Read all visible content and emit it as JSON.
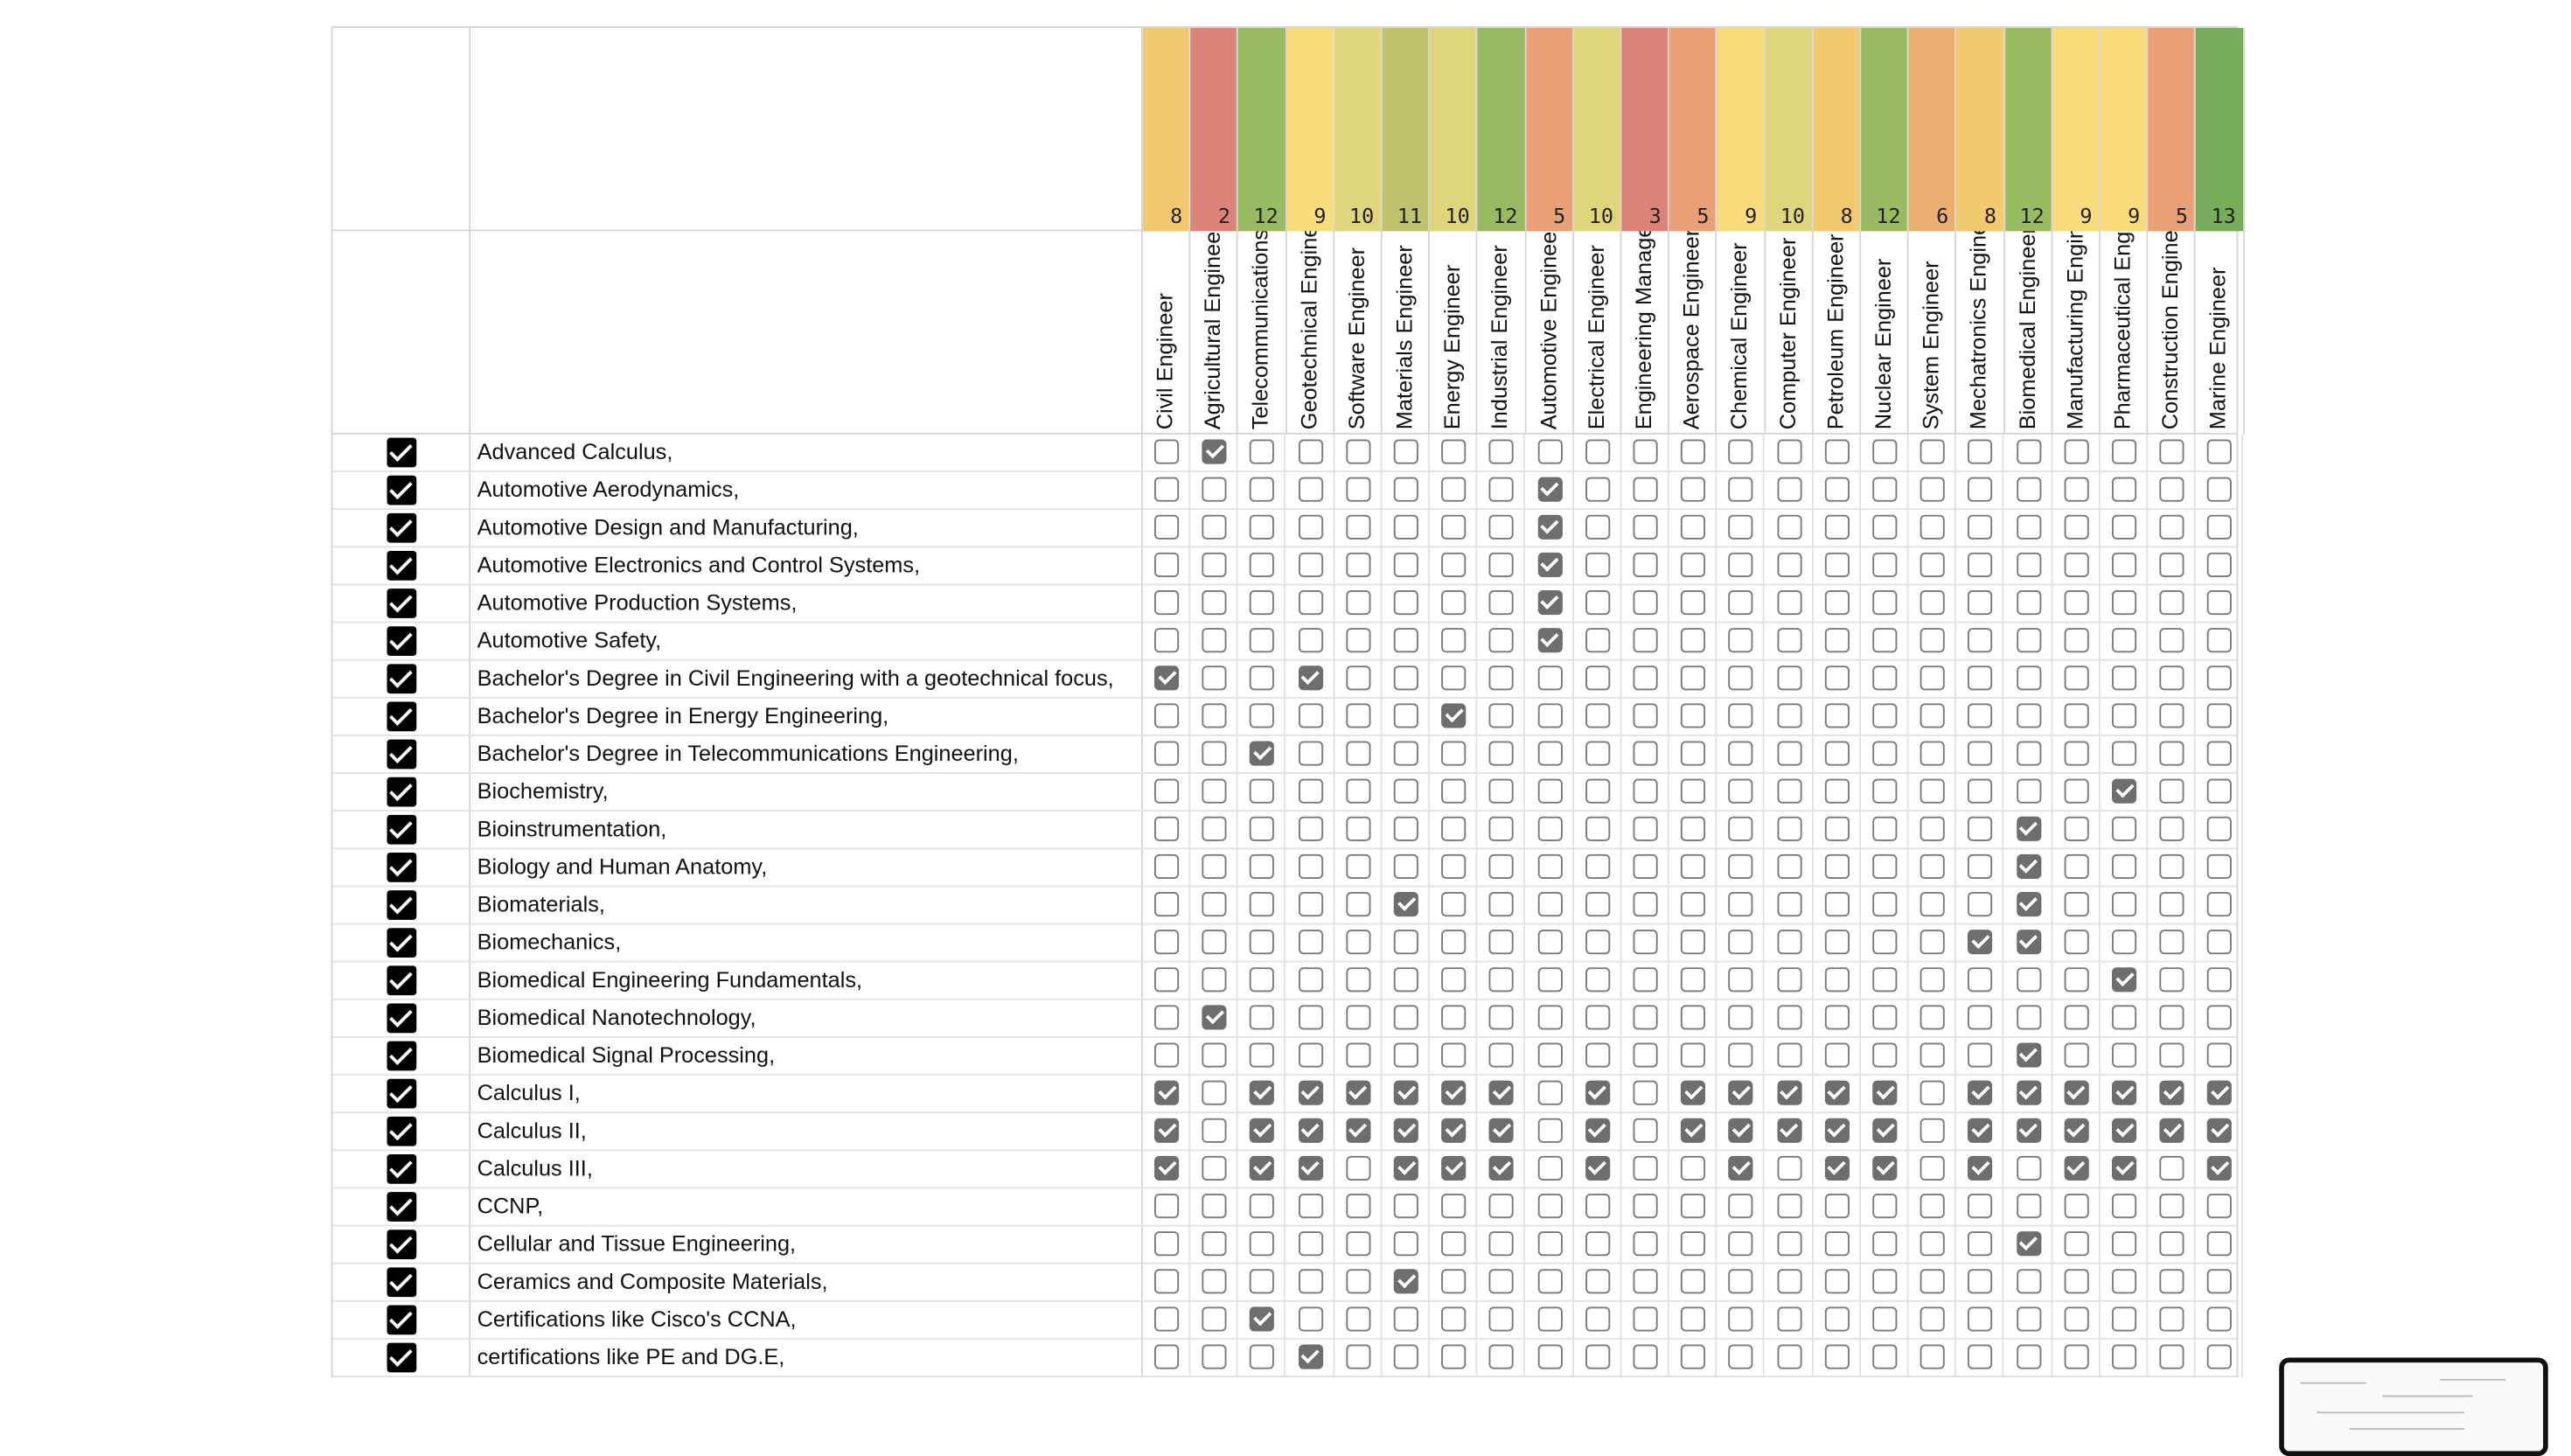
{
  "columns": [
    {
      "name": "Civil Engineer",
      "count": "8",
      "color": "#f2c96f"
    },
    {
      "name": "Agricultural Engineer",
      "count": "2",
      "color": "#dc8279"
    },
    {
      "name": "Telecommunications Engineer",
      "count": "12",
      "color": "#98bb61"
    },
    {
      "name": "Geotechnical Engineer",
      "count": "9",
      "color": "#f9dc7c"
    },
    {
      "name": "Software Engineer",
      "count": "10",
      "color": "#dfd57a"
    },
    {
      "name": "Materials Engineer",
      "count": "11",
      "color": "#bec36e"
    },
    {
      "name": "Energy Engineer",
      "count": "10",
      "color": "#dfd57a"
    },
    {
      "name": "Industrial Engineer",
      "count": "12",
      "color": "#98bb61"
    },
    {
      "name": "Automotive Engineer",
      "count": "5",
      "color": "#e9a077"
    },
    {
      "name": "Electrical Engineer",
      "count": "10",
      "color": "#dfd57a"
    },
    {
      "name": "Engineering Management",
      "count": "3",
      "color": "#dc8279"
    },
    {
      "name": "Aerospace Engineer",
      "count": "5",
      "color": "#e9a077"
    },
    {
      "name": "Chemical Engineer",
      "count": "9",
      "color": "#f9dc7c"
    },
    {
      "name": "Computer Engineer",
      "count": "10",
      "color": "#dfd57a"
    },
    {
      "name": "Petroleum Engineer",
      "count": "8",
      "color": "#f2c96f"
    },
    {
      "name": "Nuclear Engineer",
      "count": "12",
      "color": "#98bb61"
    },
    {
      "name": "System Engineer",
      "count": "6",
      "color": "#ebaf74"
    },
    {
      "name": "Mechatronics Engineer",
      "count": "8",
      "color": "#f2c96f"
    },
    {
      "name": "Biomedical Engineer",
      "count": "12",
      "color": "#98bb61"
    },
    {
      "name": "Manufacturing Engineer",
      "count": "9",
      "color": "#f9dc7c"
    },
    {
      "name": "Pharmaceutical Engineer",
      "count": "9",
      "color": "#f9dc7c"
    },
    {
      "name": "Construction Engineer",
      "count": "5",
      "color": "#e9a077"
    },
    {
      "name": "Marine Engineer",
      "count": "13",
      "color": "#77ad5a"
    }
  ],
  "rows": [
    {
      "label": "Advanced Calculus,",
      "checks": [
        1
      ]
    },
    {
      "label": "Automotive Aerodynamics,",
      "checks": [
        8
      ]
    },
    {
      "label": "Automotive Design and Manufacturing,",
      "checks": [
        8
      ]
    },
    {
      "label": "Automotive Electronics and Control Systems,",
      "checks": [
        8
      ]
    },
    {
      "label": "Automotive Production Systems,",
      "checks": [
        8
      ]
    },
    {
      "label": "Automotive Safety,",
      "checks": [
        8
      ]
    },
    {
      "label": "Bachelor's Degree in Civil Engineering with a geotechnical focus,",
      "checks": [
        0,
        3
      ]
    },
    {
      "label": "Bachelor's Degree in Energy Engineering,",
      "checks": [
        6
      ]
    },
    {
      "label": "Bachelor's Degree in Telecommunications Engineering,",
      "checks": [
        2
      ]
    },
    {
      "label": "Biochemistry,",
      "checks": [
        20
      ]
    },
    {
      "label": "Bioinstrumentation,",
      "checks": [
        18
      ]
    },
    {
      "label": "Biology and Human Anatomy,",
      "checks": [
        18
      ]
    },
    {
      "label": "Biomaterials,",
      "checks": [
        5,
        18
      ]
    },
    {
      "label": "Biomechanics,",
      "checks": [
        17,
        18
      ]
    },
    {
      "label": "Biomedical Engineering Fundamentals,",
      "checks": [
        20
      ]
    },
    {
      "label": "Biomedical Nanotechnology,",
      "checks": [
        1
      ]
    },
    {
      "label": "Biomedical Signal Processing,",
      "checks": [
        18
      ]
    },
    {
      "label": "Calculus I,",
      "checks": [
        0,
        2,
        3,
        4,
        5,
        6,
        7,
        9,
        11,
        12,
        13,
        14,
        15,
        17,
        18,
        19,
        20,
        21,
        22
      ]
    },
    {
      "label": "Calculus II,",
      "checks": [
        0,
        2,
        3,
        4,
        5,
        6,
        7,
        9,
        11,
        12,
        13,
        14,
        15,
        17,
        18,
        19,
        20,
        21,
        22
      ]
    },
    {
      "label": "Calculus III,",
      "checks": [
        0,
        2,
        3,
        5,
        6,
        7,
        9,
        12,
        14,
        15,
        17,
        19,
        20,
        22
      ]
    },
    {
      "label": "CCNP,",
      "checks": []
    },
    {
      "label": "Cellular and Tissue Engineering,",
      "checks": [
        18
      ]
    },
    {
      "label": "Ceramics and Composite Materials,",
      "checks": [
        5
      ]
    },
    {
      "label": "Certifications like Cisco's CCNA,",
      "checks": [
        2
      ]
    },
    {
      "label": "certifications like PE and DG.E,",
      "checks": [
        3
      ]
    }
  ]
}
